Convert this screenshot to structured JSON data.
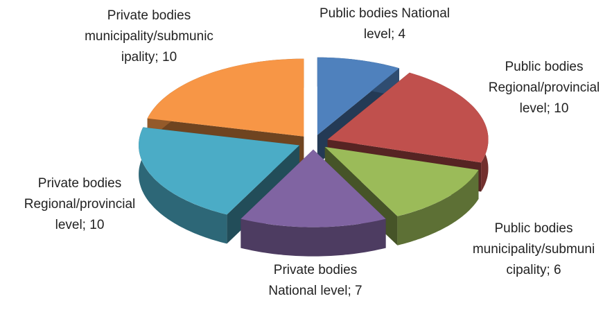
{
  "chart_data": {
    "type": "pie3d",
    "categories": [
      "Public bodies National level;",
      "Public bodies Regional/provincial level;",
      "Public bodies municipality/submunicipality;",
      "Private bodies National level;",
      "Private bodies Regional/provincial level;",
      "Private bodies municipality/submunicipality;"
    ],
    "values": [
      4,
      10,
      6,
      7,
      10,
      10
    ],
    "colors": [
      "#4f81bd",
      "#c0504d",
      "#9bbb59",
      "#8064a2",
      "#4bacc6",
      "#f79646"
    ]
  }
}
